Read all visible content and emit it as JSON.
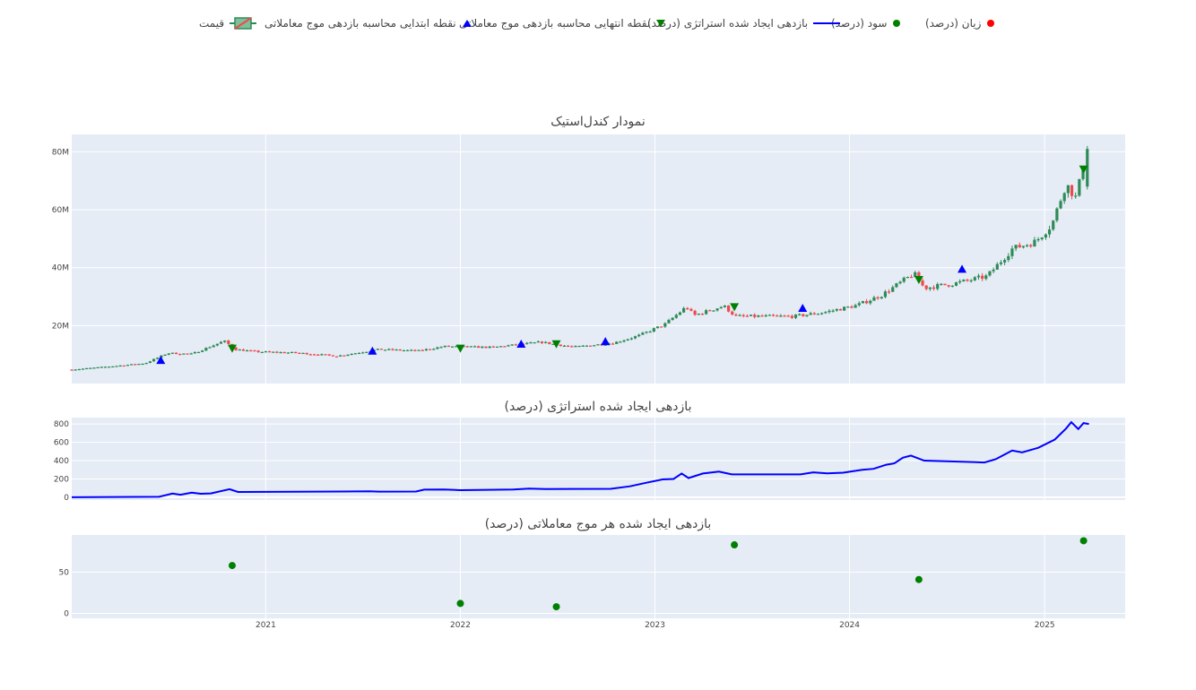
{
  "legend": {
    "loss": "زیان (درصد)",
    "profit": "سود (درصد)",
    "strategy": "بازدهی ایجاد شده استراتژی (درصد)",
    "end_point": "نقطه انتهایی محاسبه بازدهی موج معاملاتی",
    "start_point": "نقطه ابتدایی محاسبه بازدهی موج معاملاتی",
    "price": "قیمت"
  },
  "titles": {
    "candlestick": "نمودار کندل‌استیک",
    "strategy": "بازدهی ایجاد شده استراتژی (درصد)",
    "waves": "بازدهی ایجاد شده هر موج معاملاتی (درصد)"
  },
  "colors": {
    "plot_bg": "#E5ECF6",
    "up": "#2E8B57",
    "down": "#F0494B",
    "strategy_line": "#0000FF",
    "start_marker": "#0000FF",
    "end_marker": "#008000",
    "profit": "#008000",
    "loss": "#FF0000"
  },
  "chart_data": [
    {
      "type": "candlestick",
      "title": "نمودار کندل‌استیک",
      "x_range": [
        "2020-01-03",
        "2025-06-01"
      ],
      "ylim": [
        0,
        86000000
      ],
      "y_ticks": [
        20000000,
        40000000,
        60000000,
        80000000
      ],
      "y_tick_labels": [
        "20M",
        "40M",
        "60M",
        "80M"
      ],
      "x_ticks": [
        "2021-01-01",
        "2022-01-01",
        "2023-01-01",
        "2024-01-01",
        "2025-01-01"
      ],
      "x_tick_labels": [
        "2021",
        "2022",
        "2023",
        "2024",
        "2025"
      ],
      "grid": true,
      "close_path": [
        [
          "2020-01-03",
          4800000
        ],
        [
          "2020-03-15",
          5900000
        ],
        [
          "2020-05-20",
          7000000
        ],
        [
          "2020-07-01",
          10500000
        ],
        [
          "2020-08-15",
          10200000
        ],
        [
          "2020-10-15",
          14700000
        ],
        [
          "2020-11-05",
          11800000
        ],
        [
          "2020-12-15",
          11000000
        ],
        [
          "2021-03-01",
          10600000
        ],
        [
          "2021-05-15",
          9500000
        ],
        [
          "2021-08-01",
          11800000
        ],
        [
          "2021-10-15",
          11300000
        ],
        [
          "2021-12-01",
          12800000
        ],
        [
          "2022-03-01",
          12500000
        ],
        [
          "2022-06-01",
          14300000
        ],
        [
          "2022-08-01",
          12600000
        ],
        [
          "2022-10-15",
          14000000
        ],
        [
          "2022-12-01",
          16500000
        ],
        [
          "2023-01-20",
          20500000
        ],
        [
          "2023-03-01",
          26500000
        ],
        [
          "2023-03-15",
          23500000
        ],
        [
          "2023-05-10",
          26800000
        ],
        [
          "2023-06-01",
          23200000
        ],
        [
          "2023-09-20",
          23200000
        ],
        [
          "2023-11-15",
          24600000
        ],
        [
          "2024-01-15",
          27000000
        ],
        [
          "2024-03-01",
          30500000
        ],
        [
          "2024-05-01",
          38000000
        ],
        [
          "2024-05-20",
          33000000
        ],
        [
          "2024-07-15",
          34500000
        ],
        [
          "2024-09-15",
          37000000
        ],
        [
          "2024-11-01",
          46500000
        ],
        [
          "2024-12-15",
          49000000
        ],
        [
          "2025-01-15",
          55000000
        ],
        [
          "2025-02-10",
          69000000
        ],
        [
          "2025-03-01",
          64000000
        ],
        [
          "2025-03-20",
          80000000
        ]
      ],
      "start_markers": [
        {
          "x": "2020-06-18",
          "y": 8000000
        },
        {
          "x": "2021-07-20",
          "y": 11200000
        },
        {
          "x": "2022-04-25",
          "y": 13600000
        },
        {
          "x": "2022-09-30",
          "y": 14500000
        },
        {
          "x": "2023-10-05",
          "y": 26000000
        },
        {
          "x": "2024-07-30",
          "y": 39500000
        }
      ],
      "end_markers": [
        {
          "x": "2020-10-30",
          "y": 12200000
        },
        {
          "x": "2022-01-01",
          "y": 12200000
        },
        {
          "x": "2022-06-30",
          "y": 13700000
        },
        {
          "x": "2023-05-30",
          "y": 26500000
        },
        {
          "x": "2024-05-10",
          "y": 35900000
        },
        {
          "x": "2025-03-15",
          "y": 74000000
        }
      ]
    },
    {
      "type": "line",
      "title": "بازدهی ایجاد شده استراتژی (درصد)",
      "x_range": [
        "2020-01-03",
        "2025-06-01"
      ],
      "ylim": [
        -30,
        870
      ],
      "y_ticks": [
        0,
        200,
        400,
        600,
        800
      ],
      "y_tick_labels": [
        "0",
        "200",
        "400",
        "600",
        "800"
      ],
      "series": [
        {
          "values": [
            [
              "2020-01-03",
              0
            ],
            [
              "2020-06-15",
              5
            ],
            [
              "2020-07-10",
              40
            ],
            [
              "2020-07-25",
              28
            ],
            [
              "2020-08-15",
              50
            ],
            [
              "2020-09-01",
              38
            ],
            [
              "2020-09-20",
              42
            ],
            [
              "2020-10-25",
              88
            ],
            [
              "2020-11-10",
              58
            ],
            [
              "2021-07-15",
              65
            ],
            [
              "2021-08-01",
              62
            ],
            [
              "2021-10-10",
              63
            ],
            [
              "2021-10-25",
              83
            ],
            [
              "2021-12-01",
              85
            ],
            [
              "2022-01-01",
              78
            ],
            [
              "2022-04-10",
              84
            ],
            [
              "2022-05-10",
              94
            ],
            [
              "2022-06-10",
              90
            ],
            [
              "2022-10-10",
              92
            ],
            [
              "2022-11-15",
              120
            ],
            [
              "2022-12-15",
              158
            ],
            [
              "2023-01-15",
              195
            ],
            [
              "2023-02-05",
              200
            ],
            [
              "2023-02-20",
              260
            ],
            [
              "2023-03-05",
              210
            ],
            [
              "2023-04-01",
              260
            ],
            [
              "2023-05-01",
              280
            ],
            [
              "2023-05-25",
              250
            ],
            [
              "2023-08-15",
              250
            ],
            [
              "2023-10-01",
              250
            ],
            [
              "2023-10-25",
              272
            ],
            [
              "2023-11-20",
              262
            ],
            [
              "2023-12-20",
              268
            ],
            [
              "2024-01-25",
              300
            ],
            [
              "2024-02-15",
              310
            ],
            [
              "2024-03-10",
              355
            ],
            [
              "2024-03-25",
              370
            ],
            [
              "2024-04-10",
              432
            ],
            [
              "2024-04-25",
              455
            ],
            [
              "2024-05-20",
              400
            ],
            [
              "2024-08-20",
              385
            ],
            [
              "2024-09-10",
              380
            ],
            [
              "2024-10-01",
              415
            ],
            [
              "2024-11-01",
              510
            ],
            [
              "2024-11-20",
              490
            ],
            [
              "2024-12-20",
              540
            ],
            [
              "2025-01-20",
              630
            ],
            [
              "2025-02-10",
              750
            ],
            [
              "2025-02-20",
              820
            ],
            [
              "2025-03-05",
              745
            ],
            [
              "2025-03-15",
              810
            ],
            [
              "2025-03-25",
              800
            ]
          ]
        }
      ]
    },
    {
      "type": "scatter",
      "title": "بازدهی ایجاد شده هر موج معاملاتی (درصد)",
      "x_range": [
        "2020-01-03",
        "2025-06-01"
      ],
      "ylim": [
        -6,
        95
      ],
      "y_ticks": [
        0,
        50
      ],
      "y_tick_labels": [
        "0",
        "50"
      ],
      "profit_points": [
        {
          "x": "2020-10-30",
          "y": 58
        },
        {
          "x": "2022-01-01",
          "y": 12
        },
        {
          "x": "2022-06-30",
          "y": 8
        },
        {
          "x": "2023-05-30",
          "y": 83
        },
        {
          "x": "2024-05-10",
          "y": 41
        },
        {
          "x": "2025-03-15",
          "y": 88
        }
      ],
      "loss_points": []
    }
  ]
}
